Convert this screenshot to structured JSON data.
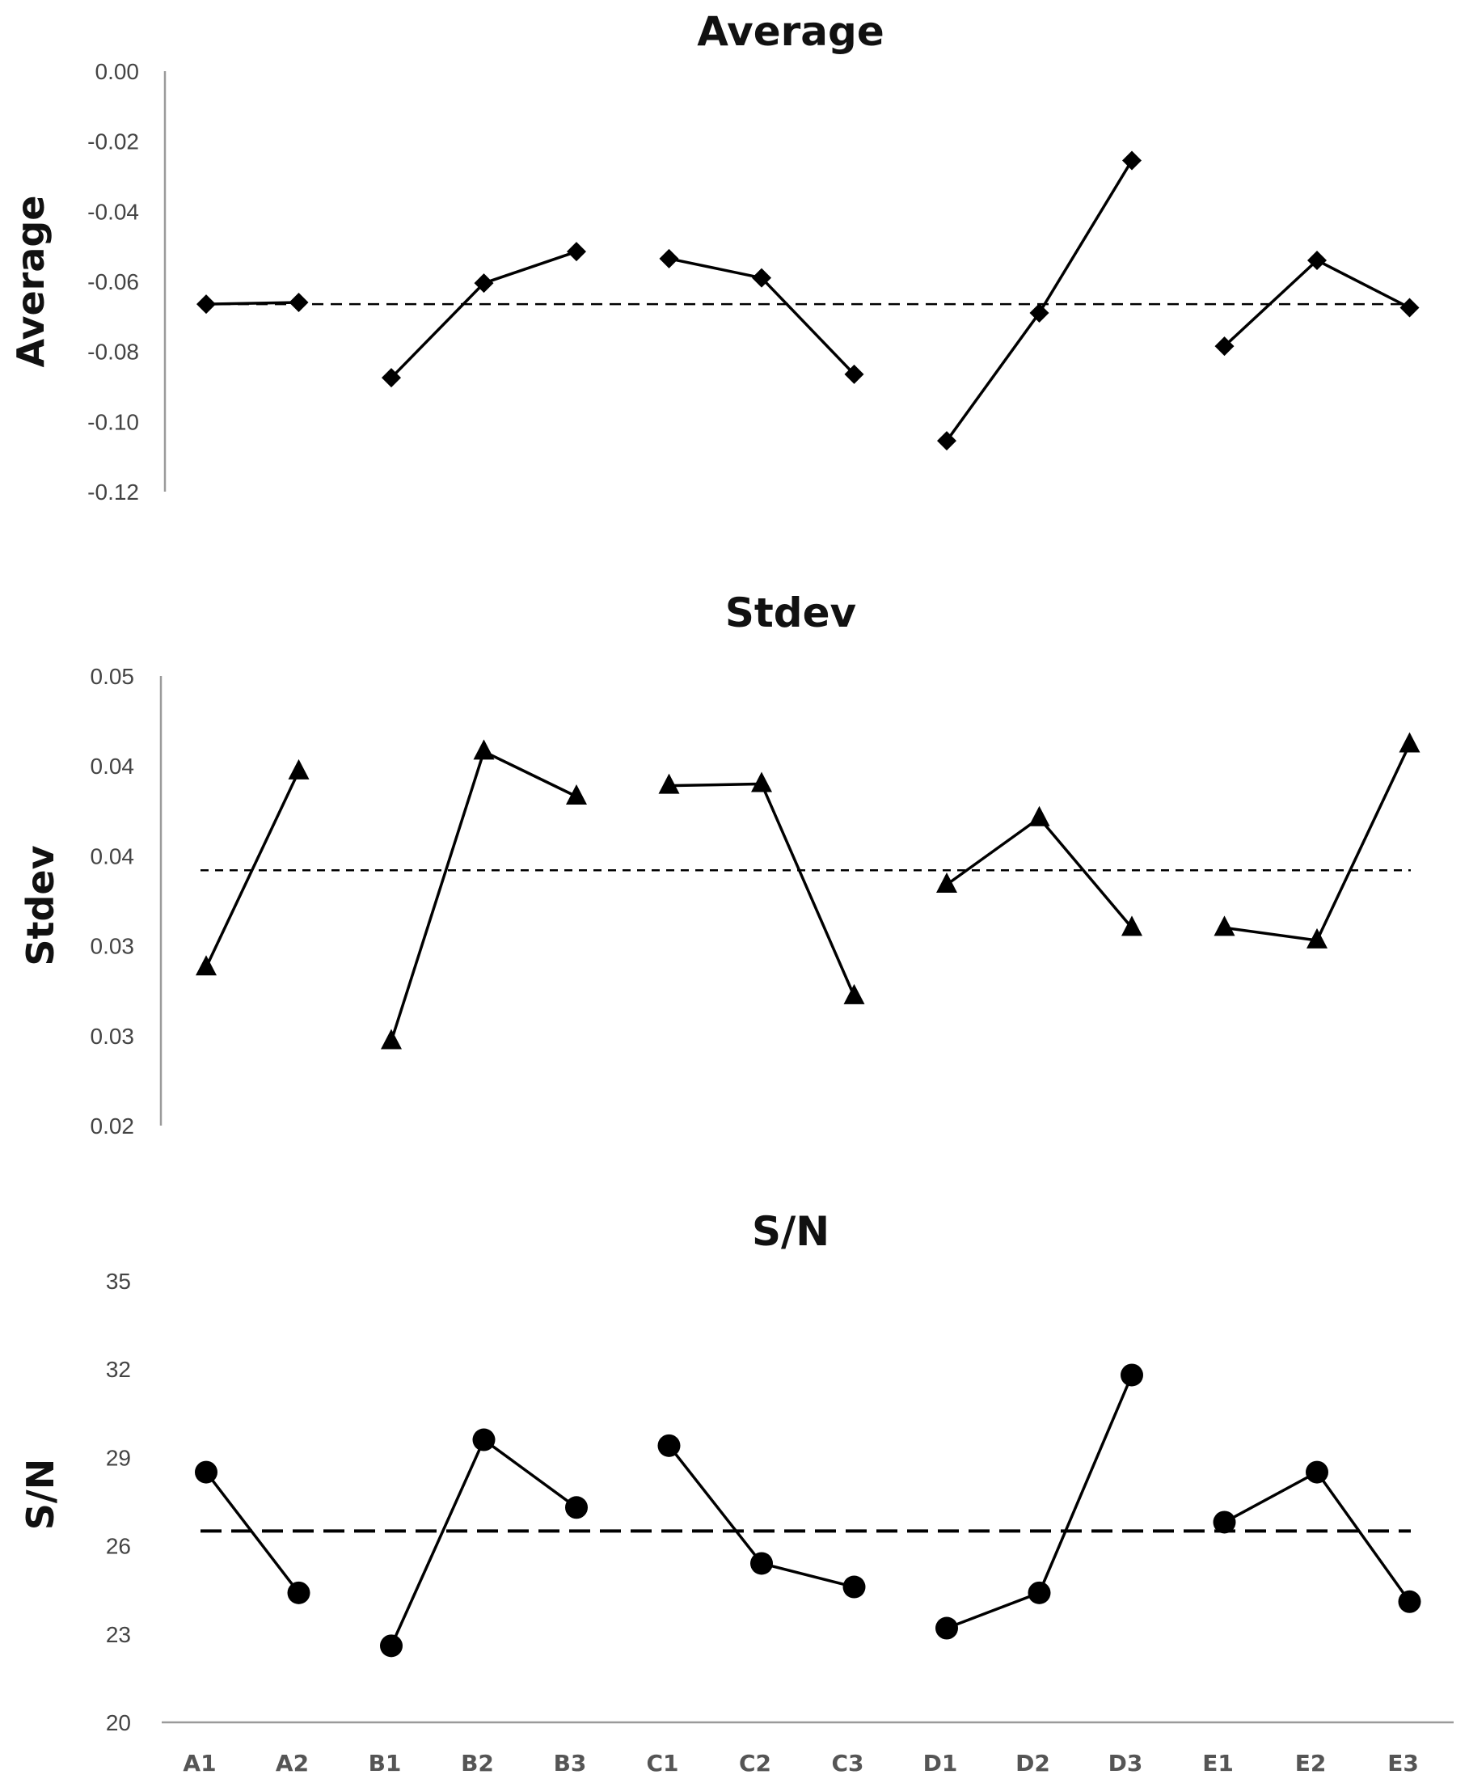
{
  "chart_data": [
    {
      "type": "line",
      "title": "Average",
      "ylabel": "Average",
      "ylim": [
        -0.12,
        0.0
      ],
      "yticks": [
        "0.00",
        "-0.02",
        "-0.04",
        "-0.06",
        "-0.08",
        "-0.10",
        "-0.12"
      ],
      "marker": "diamond",
      "groups": [
        {
          "categories": [
            "A1",
            "A2"
          ],
          "values": [
            -0.0665,
            -0.066
          ]
        },
        {
          "categories": [
            "B1",
            "B2",
            "B3"
          ],
          "values": [
            -0.0875,
            -0.0605,
            -0.0515
          ]
        },
        {
          "categories": [
            "C1",
            "C2",
            "C3"
          ],
          "values": [
            -0.0535,
            -0.059,
            -0.0865
          ]
        },
        {
          "categories": [
            "D1",
            "D2",
            "D3"
          ],
          "values": [
            -0.1055,
            -0.069,
            -0.0255
          ]
        },
        {
          "categories": [
            "E1",
            "E2",
            "E3"
          ],
          "values": [
            -0.0785,
            -0.054,
            -0.0675
          ]
        }
      ],
      "reference_line": -0.0665
    },
    {
      "type": "line",
      "title": "Stdev",
      "ylabel": "Stdev",
      "ylim": [
        0.02,
        0.045
      ],
      "yticks": [
        "0.05",
        "0.04",
        "0.04",
        "0.03",
        "0.03",
        "0.02"
      ],
      "marker": "triangle",
      "groups": [
        {
          "categories": [
            "A1",
            "A2"
          ],
          "values": [
            0.0288,
            0.0397
          ]
        },
        {
          "categories": [
            "B1",
            "B2",
            "B3"
          ],
          "values": [
            0.0247,
            0.0408,
            0.0383
          ]
        },
        {
          "categories": [
            "C1",
            "C2",
            "C3"
          ],
          "values": [
            0.0389,
            0.039,
            0.0272
          ]
        },
        {
          "categories": [
            "D1",
            "D2",
            "D3"
          ],
          "values": [
            0.0334,
            0.0371,
            0.031
          ]
        },
        {
          "categories": [
            "E1",
            "E2",
            "E3"
          ],
          "values": [
            0.031,
            0.0303,
            0.0412
          ]
        }
      ],
      "reference_line": 0.0342
    },
    {
      "type": "line",
      "title": "S/N",
      "ylabel": "S/N",
      "ylim": [
        20,
        35
      ],
      "yticks": [
        "35",
        "32",
        "29",
        "26",
        "23",
        "20"
      ],
      "marker": "circle",
      "groups": [
        {
          "categories": [
            "A1",
            "A2"
          ],
          "values": [
            28.5,
            24.4
          ]
        },
        {
          "categories": [
            "B1",
            "B2",
            "B3"
          ],
          "values": [
            22.6,
            29.6,
            27.3
          ]
        },
        {
          "categories": [
            "C1",
            "C2",
            "C3"
          ],
          "values": [
            29.4,
            25.4,
            24.6
          ]
        },
        {
          "categories": [
            "D1",
            "D2",
            "D3"
          ],
          "values": [
            23.2,
            24.4,
            31.8
          ]
        },
        {
          "categories": [
            "E1",
            "E2",
            "E3"
          ],
          "values": [
            26.8,
            28.5,
            24.1
          ]
        }
      ],
      "reference_line": 26.5
    }
  ],
  "x_categories": [
    "A1",
    "A2",
    "B1",
    "B2",
    "B3",
    "C1",
    "C2",
    "C3",
    "D1",
    "D2",
    "D3",
    "E1",
    "E2",
    "E3"
  ]
}
